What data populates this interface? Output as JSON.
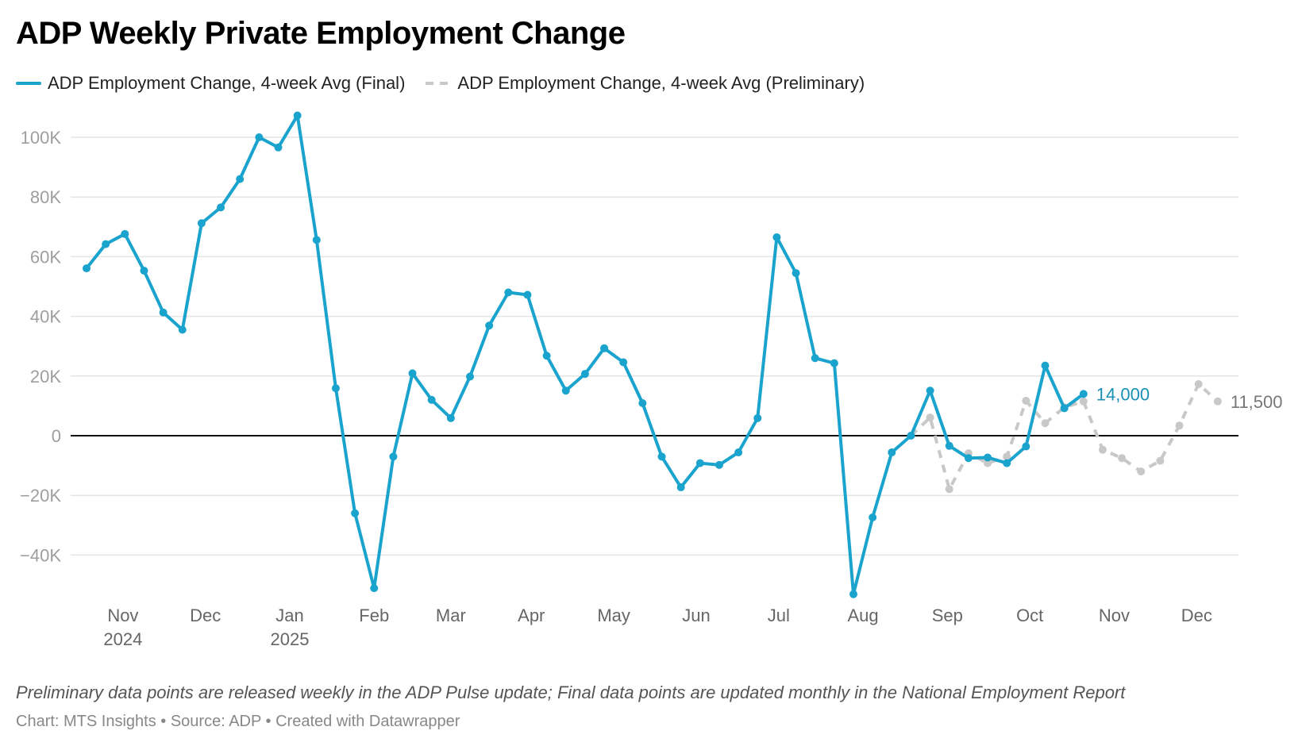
{
  "header": {
    "title": "ADP Weekly Private Employment Change"
  },
  "legend": [
    {
      "label": "ADP Employment Change, 4-week Avg (Final)",
      "style": "solid",
      "color": "#1aa3cd"
    },
    {
      "label": "ADP Employment Change, 4-week Avg (Preliminary)",
      "style": "dashed",
      "color": "#c8c8c8"
    }
  ],
  "footer": {
    "notes": "Preliminary data points are released weekly in the ADP Pulse update; Final data points are updated monthly in the National Employment Report",
    "byline": "Chart: MTS Insights • Source: ADP • Created with Datawrapper"
  },
  "chart_data": {
    "type": "line",
    "title": "ADP Weekly Private Employment Change",
    "xlabel": "",
    "ylabel": "",
    "ylim": [
      -55000,
      110000
    ],
    "grid": true,
    "legend_position": "top-left",
    "y_ticks": [
      {
        "value": 100000,
        "label": "100K"
      },
      {
        "value": 80000,
        "label": "80K"
      },
      {
        "value": 60000,
        "label": "60K"
      },
      {
        "value": 40000,
        "label": "40K"
      },
      {
        "value": 20000,
        "label": "20K"
      },
      {
        "value": 0,
        "label": "0"
      },
      {
        "value": -20000,
        "label": "−20K"
      },
      {
        "value": -40000,
        "label": "−40K"
      }
    ],
    "x_week_range": [
      0,
      59
    ],
    "x_ticks": [
      {
        "week": 1.9,
        "label": "Nov",
        "sub": "2024"
      },
      {
        "week": 6.2,
        "label": "Dec",
        "sub": ""
      },
      {
        "week": 10.6,
        "label": "Jan",
        "sub": "2025"
      },
      {
        "week": 15.0,
        "label": "Feb",
        "sub": ""
      },
      {
        "week": 19.0,
        "label": "Mar",
        "sub": ""
      },
      {
        "week": 23.2,
        "label": "Apr",
        "sub": ""
      },
      {
        "week": 27.5,
        "label": "May",
        "sub": ""
      },
      {
        "week": 31.8,
        "label": "Jun",
        "sub": ""
      },
      {
        "week": 36.1,
        "label": "Jul",
        "sub": ""
      },
      {
        "week": 40.5,
        "label": "Aug",
        "sub": ""
      },
      {
        "week": 44.9,
        "label": "Sep",
        "sub": ""
      },
      {
        "week": 49.2,
        "label": "Oct",
        "sub": ""
      },
      {
        "week": 53.6,
        "label": "Nov",
        "sub": ""
      },
      {
        "week": 57.9,
        "label": "Dec",
        "sub": ""
      }
    ],
    "series": [
      {
        "name": "ADP Employment Change, 4-week Avg (Final)",
        "color": "#1aa3cd",
        "dashed": false,
        "start_week": 0,
        "values": [
          56100,
          64200,
          67600,
          55300,
          41300,
          35500,
          71200,
          76500,
          86000,
          100000,
          96600,
          107300,
          65600,
          15900,
          -26000,
          -51100,
          -7000,
          20900,
          12000,
          5900,
          19800,
          36900,
          48000,
          47200,
          26800,
          15100,
          20700,
          29300,
          24600,
          10900,
          -7000,
          -17300,
          -9200,
          -9800,
          -5600,
          5900,
          66500,
          54500,
          26000,
          24300,
          -53100,
          -27400,
          -5600,
          0,
          15100,
          -3400,
          -7500,
          -7300,
          -9200,
          -3600,
          23500,
          9200,
          14000
        ],
        "end_label": "14,000"
      },
      {
        "name": "ADP Employment Change, 4-week Avg (Preliminary)",
        "color": "#c8c8c8",
        "dashed": true,
        "start_week": 43,
        "values": [
          0,
          6100,
          -17900,
          -5900,
          -9200,
          -7000,
          11700,
          4200,
          9500,
          11500,
          -4700,
          -7500,
          -12000,
          -8400,
          3400,
          17300,
          11500
        ],
        "end_label": "11,500"
      }
    ]
  }
}
